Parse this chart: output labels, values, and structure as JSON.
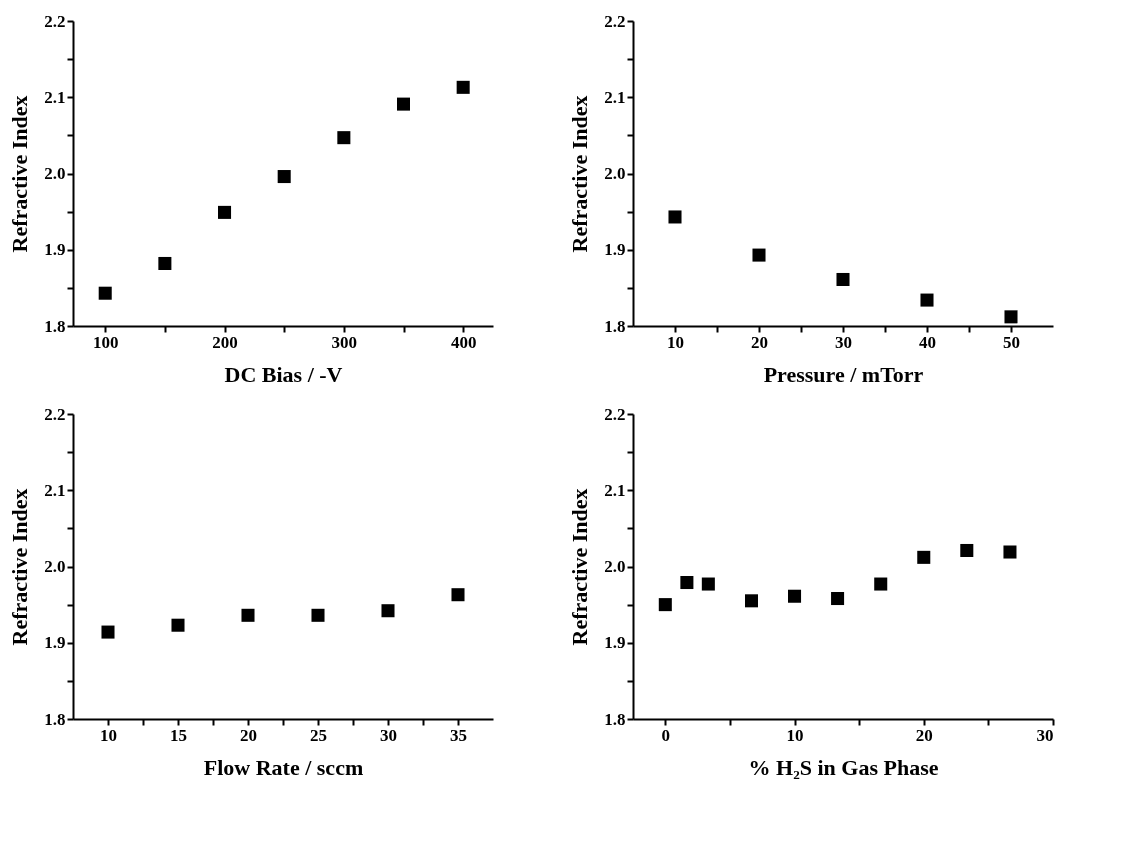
{
  "chart_data": [
    {
      "type": "scatter",
      "xlabel": "DC Bias / -V",
      "ylabel": "Refractive Index",
      "marker": "square",
      "x": [
        100,
        150,
        200,
        250,
        300,
        350,
        400
      ],
      "series": [
        {
          "color": "#000000",
          "values": [
            1.843,
            1.882,
            1.949,
            1.996,
            2.047,
            2.091,
            2.113
          ]
        }
      ],
      "xlim": [
        73,
        425
      ],
      "xticks": [
        100,
        {
          "value": 150,
          "label": null
        },
        200,
        {
          "value": 250,
          "label": null
        },
        300,
        {
          "value": 350,
          "label": null
        },
        400
      ],
      "ylim": [
        1.8,
        2.2
      ],
      "yticks": [
        {
          "value": 1.8,
          "label": "1.8"
        },
        {
          "value": 1.85,
          "label": null
        },
        {
          "value": 1.9,
          "label": "1.9"
        },
        {
          "value": 1.95,
          "label": null
        },
        {
          "value": 2.0,
          "label": "2.0"
        },
        {
          "value": 2.05,
          "label": null
        },
        {
          "value": 2.1,
          "label": "2.1"
        },
        {
          "value": 2.15,
          "label": null
        },
        {
          "value": 2.2,
          "label": "2.2"
        }
      ]
    },
    {
      "type": "scatter",
      "xlabel": "Pressure / mTorr",
      "ylabel": "Refractive Index",
      "marker": "square",
      "x": [
        10,
        20,
        30,
        40,
        50
      ],
      "series": [
        {
          "color": "#000000",
          "values": [
            1.943,
            1.893,
            1.861,
            1.834,
            1.812
          ]
        }
      ],
      "xlim": [
        5,
        55
      ],
      "xticks": [
        10,
        {
          "value": 15,
          "label": null
        },
        20,
        {
          "value": 25,
          "label": null
        },
        30,
        {
          "value": 35,
          "label": null
        },
        40,
        {
          "value": 45,
          "label": null
        },
        50
      ],
      "ylim": [
        1.8,
        2.2
      ],
      "yticks": [
        {
          "value": 1.8,
          "label": "1.8"
        },
        {
          "value": 1.85,
          "label": null
        },
        {
          "value": 1.9,
          "label": "1.9"
        },
        {
          "value": 1.95,
          "label": null
        },
        {
          "value": 2.0,
          "label": "2.0"
        },
        {
          "value": 2.05,
          "label": null
        },
        {
          "value": 2.1,
          "label": "2.1"
        },
        {
          "value": 2.15,
          "label": null
        },
        {
          "value": 2.2,
          "label": "2.2"
        }
      ]
    },
    {
      "type": "scatter",
      "xlabel": "Flow Rate / sccm",
      "ylabel": "Refractive Index",
      "marker": "square",
      "x": [
        10,
        15,
        20,
        25,
        30,
        35
      ],
      "series": [
        {
          "color": "#000000",
          "values": [
            1.914,
            1.923,
            1.936,
            1.936,
            1.942,
            1.963
          ]
        }
      ],
      "xlim": [
        7.5,
        37.5
      ],
      "xticks": [
        10,
        {
          "value": 12.5,
          "label": null
        },
        15,
        {
          "value": 17.5,
          "label": null
        },
        20,
        {
          "value": 22.5,
          "label": null
        },
        25,
        {
          "value": 27.5,
          "label": null
        },
        30,
        {
          "value": 32.5,
          "label": null
        },
        35
      ],
      "ylim": [
        1.8,
        2.2
      ],
      "yticks": [
        {
          "value": 1.8,
          "label": "1.8"
        },
        {
          "value": 1.85,
          "label": null
        },
        {
          "value": 1.9,
          "label": "1.9"
        },
        {
          "value": 1.95,
          "label": null
        },
        {
          "value": 2.0,
          "label": "2.0"
        },
        {
          "value": 2.05,
          "label": null
        },
        {
          "value": 2.1,
          "label": "2.1"
        },
        {
          "value": 2.15,
          "label": null
        },
        {
          "value": 2.2,
          "label": "2.2"
        }
      ]
    },
    {
      "type": "scatter",
      "xlabel": "% H₂S in Gas Phase",
      "ylabel": "Refractive Index",
      "marker": "square",
      "x": [
        0,
        1.67,
        3.33,
        6.67,
        10,
        13.33,
        16.67,
        20,
        23.33,
        26.67
      ],
      "series": [
        {
          "color": "#000000",
          "values": [
            1.95,
            1.979,
            1.977,
            1.955,
            1.961,
            1.958,
            1.977,
            2.012,
            2.021,
            2.019
          ]
        }
      ],
      "xlim": [
        -2.5,
        30
      ],
      "xticks": [
        0,
        {
          "value": 5,
          "label": null
        },
        10,
        {
          "value": 15,
          "label": null
        },
        20,
        {
          "value": 25,
          "label": null
        },
        30
      ],
      "ylim": [
        1.8,
        2.2
      ],
      "yticks": [
        {
          "value": 1.8,
          "label": "1.8"
        },
        {
          "value": 1.85,
          "label": null
        },
        {
          "value": 1.9,
          "label": "1.9"
        },
        {
          "value": 1.95,
          "label": null
        },
        {
          "value": 2.0,
          "label": "2.0"
        },
        {
          "value": 2.05,
          "label": null
        },
        {
          "value": 2.1,
          "label": "2.1"
        },
        {
          "value": 2.15,
          "label": null
        },
        {
          "value": 2.2,
          "label": "2.2"
        }
      ]
    }
  ]
}
